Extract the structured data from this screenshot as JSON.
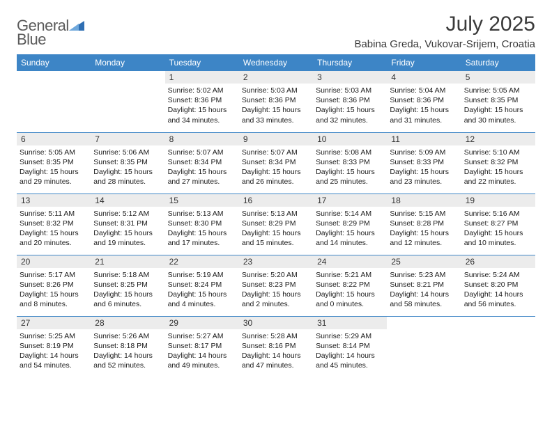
{
  "brand": {
    "word1": "General",
    "word2": "Blue",
    "logo_color": "#2f6fb3",
    "text_color": "#5a5a5a"
  },
  "title": "July 2025",
  "location": "Babina Greda, Vukovar-Srijem, Croatia",
  "colors": {
    "header_bg": "#3d85c6",
    "header_fg": "#ffffff",
    "daynum_bg": "#ececec",
    "rule": "#3d85c6"
  },
  "weekdays": [
    "Sunday",
    "Monday",
    "Tuesday",
    "Wednesday",
    "Thursday",
    "Friday",
    "Saturday"
  ],
  "weeks": [
    [
      null,
      null,
      {
        "n": "1",
        "sr": "5:02 AM",
        "ss": "8:36 PM",
        "dl": "15 hours and 34 minutes."
      },
      {
        "n": "2",
        "sr": "5:03 AM",
        "ss": "8:36 PM",
        "dl": "15 hours and 33 minutes."
      },
      {
        "n": "3",
        "sr": "5:03 AM",
        "ss": "8:36 PM",
        "dl": "15 hours and 32 minutes."
      },
      {
        "n": "4",
        "sr": "5:04 AM",
        "ss": "8:36 PM",
        "dl": "15 hours and 31 minutes."
      },
      {
        "n": "5",
        "sr": "5:05 AM",
        "ss": "8:35 PM",
        "dl": "15 hours and 30 minutes."
      }
    ],
    [
      {
        "n": "6",
        "sr": "5:05 AM",
        "ss": "8:35 PM",
        "dl": "15 hours and 29 minutes."
      },
      {
        "n": "7",
        "sr": "5:06 AM",
        "ss": "8:35 PM",
        "dl": "15 hours and 28 minutes."
      },
      {
        "n": "8",
        "sr": "5:07 AM",
        "ss": "8:34 PM",
        "dl": "15 hours and 27 minutes."
      },
      {
        "n": "9",
        "sr": "5:07 AM",
        "ss": "8:34 PM",
        "dl": "15 hours and 26 minutes."
      },
      {
        "n": "10",
        "sr": "5:08 AM",
        "ss": "8:33 PM",
        "dl": "15 hours and 25 minutes."
      },
      {
        "n": "11",
        "sr": "5:09 AM",
        "ss": "8:33 PM",
        "dl": "15 hours and 23 minutes."
      },
      {
        "n": "12",
        "sr": "5:10 AM",
        "ss": "8:32 PM",
        "dl": "15 hours and 22 minutes."
      }
    ],
    [
      {
        "n": "13",
        "sr": "5:11 AM",
        "ss": "8:32 PM",
        "dl": "15 hours and 20 minutes."
      },
      {
        "n": "14",
        "sr": "5:12 AM",
        "ss": "8:31 PM",
        "dl": "15 hours and 19 minutes."
      },
      {
        "n": "15",
        "sr": "5:13 AM",
        "ss": "8:30 PM",
        "dl": "15 hours and 17 minutes."
      },
      {
        "n": "16",
        "sr": "5:13 AM",
        "ss": "8:29 PM",
        "dl": "15 hours and 15 minutes."
      },
      {
        "n": "17",
        "sr": "5:14 AM",
        "ss": "8:29 PM",
        "dl": "15 hours and 14 minutes."
      },
      {
        "n": "18",
        "sr": "5:15 AM",
        "ss": "8:28 PM",
        "dl": "15 hours and 12 minutes."
      },
      {
        "n": "19",
        "sr": "5:16 AM",
        "ss": "8:27 PM",
        "dl": "15 hours and 10 minutes."
      }
    ],
    [
      {
        "n": "20",
        "sr": "5:17 AM",
        "ss": "8:26 PM",
        "dl": "15 hours and 8 minutes."
      },
      {
        "n": "21",
        "sr": "5:18 AM",
        "ss": "8:25 PM",
        "dl": "15 hours and 6 minutes."
      },
      {
        "n": "22",
        "sr": "5:19 AM",
        "ss": "8:24 PM",
        "dl": "15 hours and 4 minutes."
      },
      {
        "n": "23",
        "sr": "5:20 AM",
        "ss": "8:23 PM",
        "dl": "15 hours and 2 minutes."
      },
      {
        "n": "24",
        "sr": "5:21 AM",
        "ss": "8:22 PM",
        "dl": "15 hours and 0 minutes."
      },
      {
        "n": "25",
        "sr": "5:23 AM",
        "ss": "8:21 PM",
        "dl": "14 hours and 58 minutes."
      },
      {
        "n": "26",
        "sr": "5:24 AM",
        "ss": "8:20 PM",
        "dl": "14 hours and 56 minutes."
      }
    ],
    [
      {
        "n": "27",
        "sr": "5:25 AM",
        "ss": "8:19 PM",
        "dl": "14 hours and 54 minutes."
      },
      {
        "n": "28",
        "sr": "5:26 AM",
        "ss": "8:18 PM",
        "dl": "14 hours and 52 minutes."
      },
      {
        "n": "29",
        "sr": "5:27 AM",
        "ss": "8:17 PM",
        "dl": "14 hours and 49 minutes."
      },
      {
        "n": "30",
        "sr": "5:28 AM",
        "ss": "8:16 PM",
        "dl": "14 hours and 47 minutes."
      },
      {
        "n": "31",
        "sr": "5:29 AM",
        "ss": "8:14 PM",
        "dl": "14 hours and 45 minutes."
      },
      null,
      null
    ]
  ],
  "labels": {
    "sunrise": "Sunrise:",
    "sunset": "Sunset:",
    "daylight": "Daylight:"
  }
}
